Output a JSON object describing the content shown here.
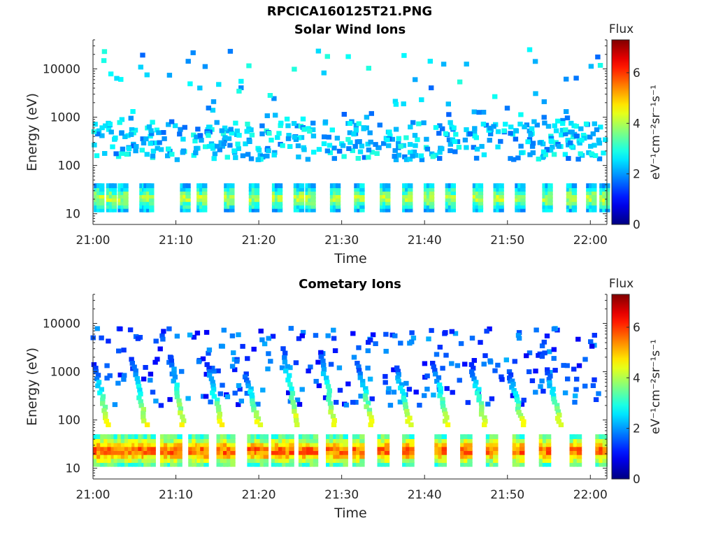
{
  "figure": {
    "title": "RPCICA160125T21.PNG"
  },
  "chart_data": [
    {
      "type": "heatmap",
      "title": "Solar Wind Ions",
      "xlabel": "Time",
      "ylabel": "Energy (eV)",
      "x_ticks": [
        "21:00",
        "21:10",
        "21:20",
        "21:30",
        "21:40",
        "21:50",
        "22:00"
      ],
      "x_range": [
        "21:00",
        "22:02"
      ],
      "y_scale": "log",
      "y_ticks": [
        10,
        100,
        1000,
        10000
      ],
      "y_range": [
        6,
        40000
      ],
      "colorbar": {
        "title": "Flux",
        "label": "eV⁻¹cm⁻²sr⁻¹s⁻¹",
        "range": [
          0,
          7.3
        ],
        "ticks": [
          0,
          2,
          4,
          6
        ],
        "colormap": "jet"
      },
      "features": {
        "low_energy_bursts_min": [
          0.4,
          1.9,
          3.3,
          5.9,
          6.4,
          10.8,
          12.8,
          16.1,
          19.1,
          21.9,
          24.5,
          25.9,
          28.9,
          31.8,
          34.9,
          37.6,
          40.2,
          42.8,
          46.1,
          48.6,
          51.2,
          54.5,
          57.4,
          59.8,
          61.4
        ],
        "low_energy_band_eV": [
          12,
          38
        ],
        "high_energy_band_eV": [
          130,
          800
        ],
        "high_energy_band_flux": "2-3",
        "low_energy_peak_flux": 4.8
      }
    },
    {
      "type": "heatmap",
      "title": "Cometary Ions",
      "xlabel": "Time",
      "ylabel": "Energy (eV)",
      "x_ticks": [
        "21:00",
        "21:10",
        "21:20",
        "21:30",
        "21:40",
        "21:50",
        "22:00"
      ],
      "x_range": [
        "21:00",
        "22:02"
      ],
      "y_scale": "log",
      "y_ticks": [
        10,
        100,
        1000,
        10000
      ],
      "y_range": [
        6,
        40000
      ],
      "colorbar": {
        "title": "Flux",
        "label": "eV⁻¹cm⁻²sr⁻¹s⁻¹",
        "range": [
          0,
          7.3
        ],
        "ticks": [
          0,
          2,
          4,
          6
        ],
        "colormap": "jet"
      },
      "features": {
        "low_energy_bursts_min": [
          0.3,
          1.6,
          2.8,
          4.1,
          5.3,
          6.4,
          8.4,
          9.6,
          11.8,
          12.8,
          15.2,
          16.0,
          18.9,
          20.0,
          21.8,
          23.1,
          25.1,
          26.0,
          28.4,
          29.6,
          31.6,
          34.6,
          37.6,
          41.5,
          44.6,
          47.7,
          50.9,
          54.1,
          57.8,
          60.9
        ],
        "low_energy_band_eV": [
          12,
          45
        ],
        "dispersed_streaks_peak_eV": [
          1400,
          1800,
          2000,
          1400,
          900,
          3000,
          2500,
          1500,
          1200,
          1500,
          1400,
          1000,
          1100
        ],
        "low_energy_peak_flux": 6.5
      }
    }
  ]
}
